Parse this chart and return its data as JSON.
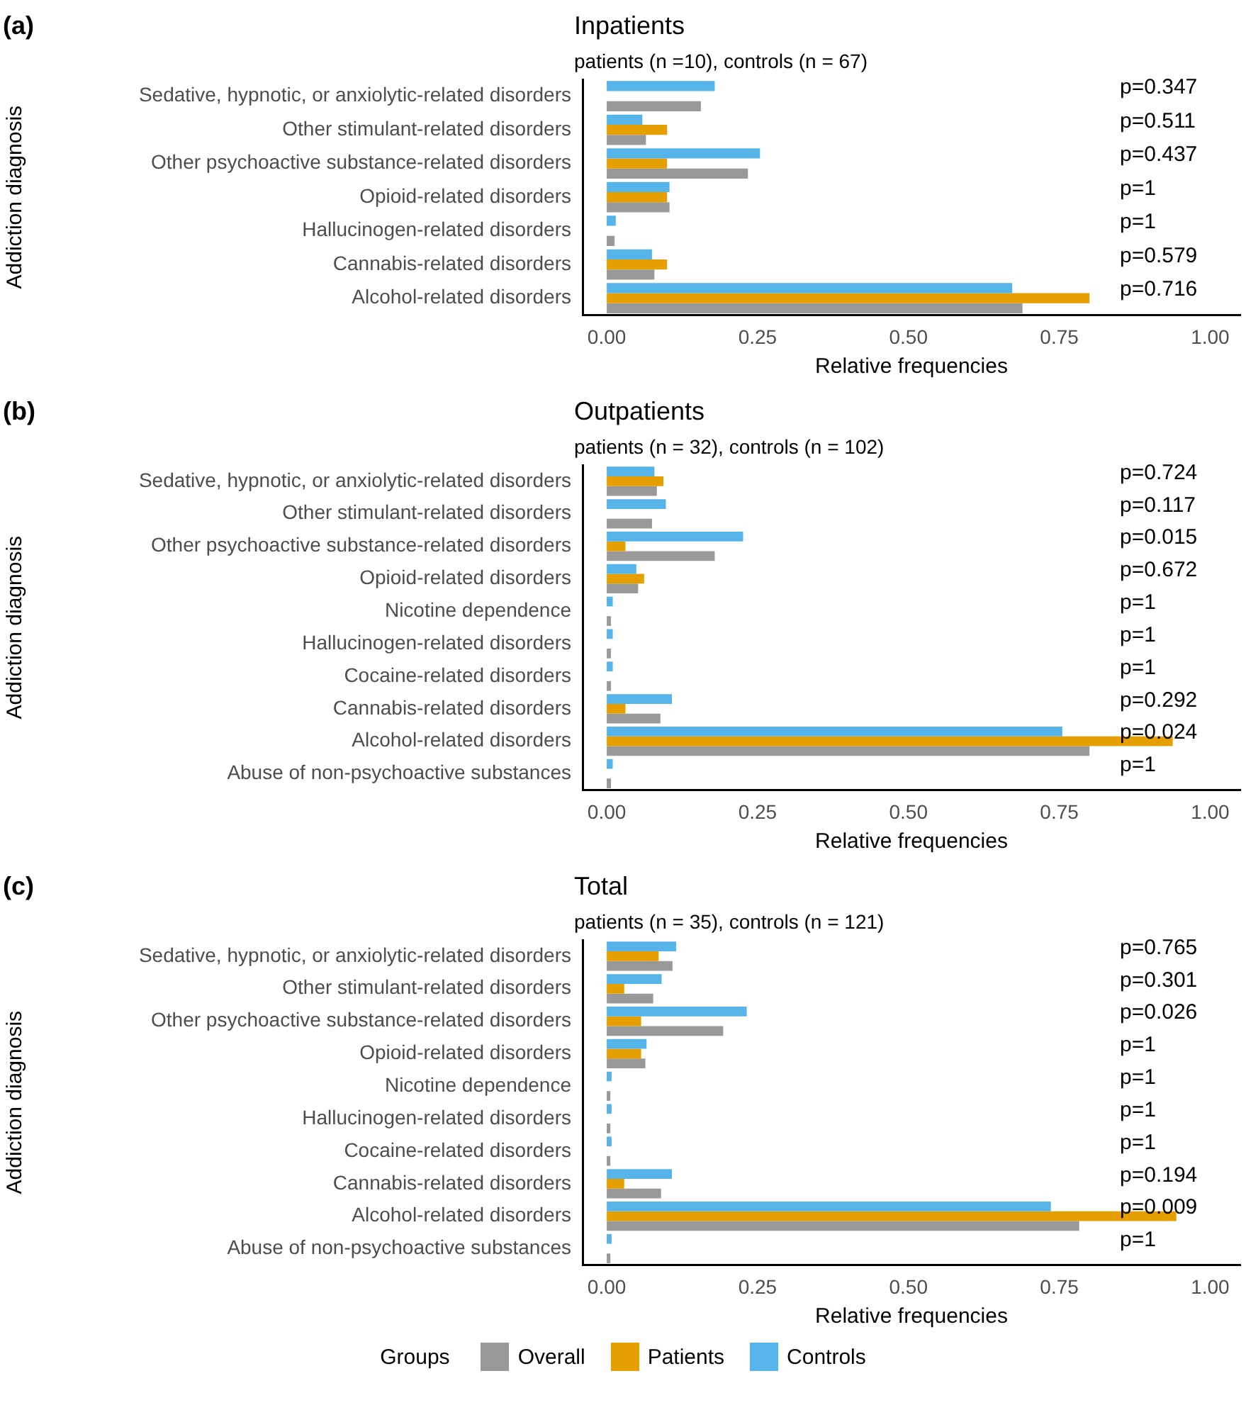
{
  "chart_data": [
    {
      "type": "bar",
      "orientation": "horizontal",
      "title": "Inpatients",
      "subtitle": "patients (n =10), controls (n = 67)",
      "xlabel": "Relative frequencies",
      "ylabel": "Addiction diagnosis",
      "categories": [
        "Sedative, hypnotic, or anxiolytic-related disorders",
        "Other stimulant-related disorders",
        "Other psychoactive substance-related disorders",
        "Opioid-related disorders",
        "Hallucinogen-related disorders",
        "Cannabis-related disorders",
        "Alcohol-related disorders"
      ],
      "series": [
        {
          "color": "#999999",
          "values": [
            0.156,
            0.065,
            0.234,
            0.104,
            0.013,
            0.079,
            0.689
          ]
        },
        {
          "color": "#e69f00",
          "values": [
            0,
            0.1,
            0.1,
            0.1,
            0,
            0.1,
            0.8
          ]
        },
        {
          "color": "#56b4e9",
          "values": [
            0.179,
            0.059,
            0.254,
            0.104,
            0.015,
            0.075,
            0.672
          ]
        }
      ],
      "xlim": [
        -0.04,
        1.05
      ],
      "xticks": [
        {
          "value": 0,
          "label": "0.00"
        },
        {
          "value": 0.25,
          "label": "0.25"
        },
        {
          "value": 0.5,
          "label": "0.50"
        },
        {
          "value": 0.75,
          "label": "0.75"
        },
        {
          "value": 1,
          "label": "1.00"
        }
      ],
      "grid": false,
      "annotations": [
        "(a)",
        "p=0.347",
        "p=0.511",
        "p=0.437",
        "p=1",
        "p=1",
        "p=0.579",
        "p=0.716"
      ]
    },
    {
      "type": "bar",
      "orientation": "horizontal",
      "title": "Outpatients",
      "subtitle": "patients (n = 32), controls (n = 102)",
      "xlabel": "Relative frequencies",
      "ylabel": "Addiction diagnosis",
      "categories": [
        "Sedative, hypnotic, or anxiolytic-related disorders",
        "Other stimulant-related disorders",
        "Other psychoactive substance-related disorders",
        "Opioid-related disorders",
        "Nicotine dependence",
        "Hallucinogen-related disorders",
        "Cocaine-related disorders",
        "Cannabis-related disorders",
        "Alcohol-related disorders",
        "Abuse of non-psychoactive substances"
      ],
      "series": [
        {
          "color": "#999999",
          "values": [
            0.083,
            0.075,
            0.179,
            0.052,
            0.007,
            0.007,
            0.007,
            0.089,
            0.8,
            0.007
          ]
        },
        {
          "color": "#e69f00",
          "values": [
            0.094,
            0,
            0.031,
            0.062,
            0,
            0,
            0,
            0.031,
            0.938,
            0
          ]
        },
        {
          "color": "#56b4e9",
          "values": [
            0.079,
            0.098,
            0.226,
            0.049,
            0.01,
            0.01,
            0.01,
            0.108,
            0.755,
            0.01
          ]
        }
      ],
      "xlim": [
        -0.04,
        1.05
      ],
      "xticks": [
        {
          "value": 0,
          "label": "0.00"
        },
        {
          "value": 0.25,
          "label": "0.25"
        },
        {
          "value": 0.5,
          "label": "0.50"
        },
        {
          "value": 0.75,
          "label": "0.75"
        },
        {
          "value": 1,
          "label": "1.00"
        }
      ],
      "grid": false,
      "annotations": [
        "(b)",
        "p=0.724",
        "p=0.117",
        "p=0.015",
        "p=0.672",
        "p=1",
        "p=1",
        "p=1",
        "p=0.292",
        "p=0.024",
        "p=1"
      ]
    },
    {
      "type": "bar",
      "orientation": "horizontal",
      "title": "Total",
      "subtitle": "patients (n = 35), controls (n = 121)",
      "xlabel": "Relative frequencies",
      "ylabel": "Addiction diagnosis",
      "legend": "bottom",
      "legend_title": "Groups",
      "categories": [
        "Sedative, hypnotic, or anxiolytic-related disorders",
        "Other stimulant-related disorders",
        "Other psychoactive substance-related disorders",
        "Opioid-related disorders",
        "Nicotine dependence",
        "Hallucinogen-related disorders",
        "Cocaine-related disorders",
        "Cannabis-related disorders",
        "Alcohol-related disorders",
        "Abuse of non-psychoactive substances"
      ],
      "series": [
        {
          "name": "Overall",
          "color": "#999999",
          "values": [
            0.109,
            0.077,
            0.193,
            0.064,
            0.006,
            0.006,
            0.006,
            0.09,
            0.783,
            0.006
          ]
        },
        {
          "name": "Patients",
          "color": "#e69f00",
          "values": [
            0.086,
            0.029,
            0.057,
            0.057,
            0,
            0,
            0,
            0.029,
            0.944,
            0
          ]
        },
        {
          "name": "Controls",
          "color": "#56b4e9",
          "values": [
            0.115,
            0.091,
            0.232,
            0.066,
            0.008,
            0.008,
            0.008,
            0.108,
            0.736,
            0.008
          ]
        }
      ],
      "xlim": [
        -0.04,
        1.05
      ],
      "xticks": [
        {
          "value": 0,
          "label": "0.00"
        },
        {
          "value": 0.25,
          "label": "0.25"
        },
        {
          "value": 0.5,
          "label": "0.50"
        },
        {
          "value": 0.75,
          "label": "0.75"
        },
        {
          "value": 1,
          "label": "1.00"
        }
      ],
      "grid": false,
      "annotations": [
        "(c)",
        "p=0.765",
        "p=0.301",
        "p=0.026",
        "p=1",
        "p=1",
        "p=1",
        "p=1",
        "p=0.194",
        "p=0.009",
        "p=1"
      ]
    }
  ]
}
